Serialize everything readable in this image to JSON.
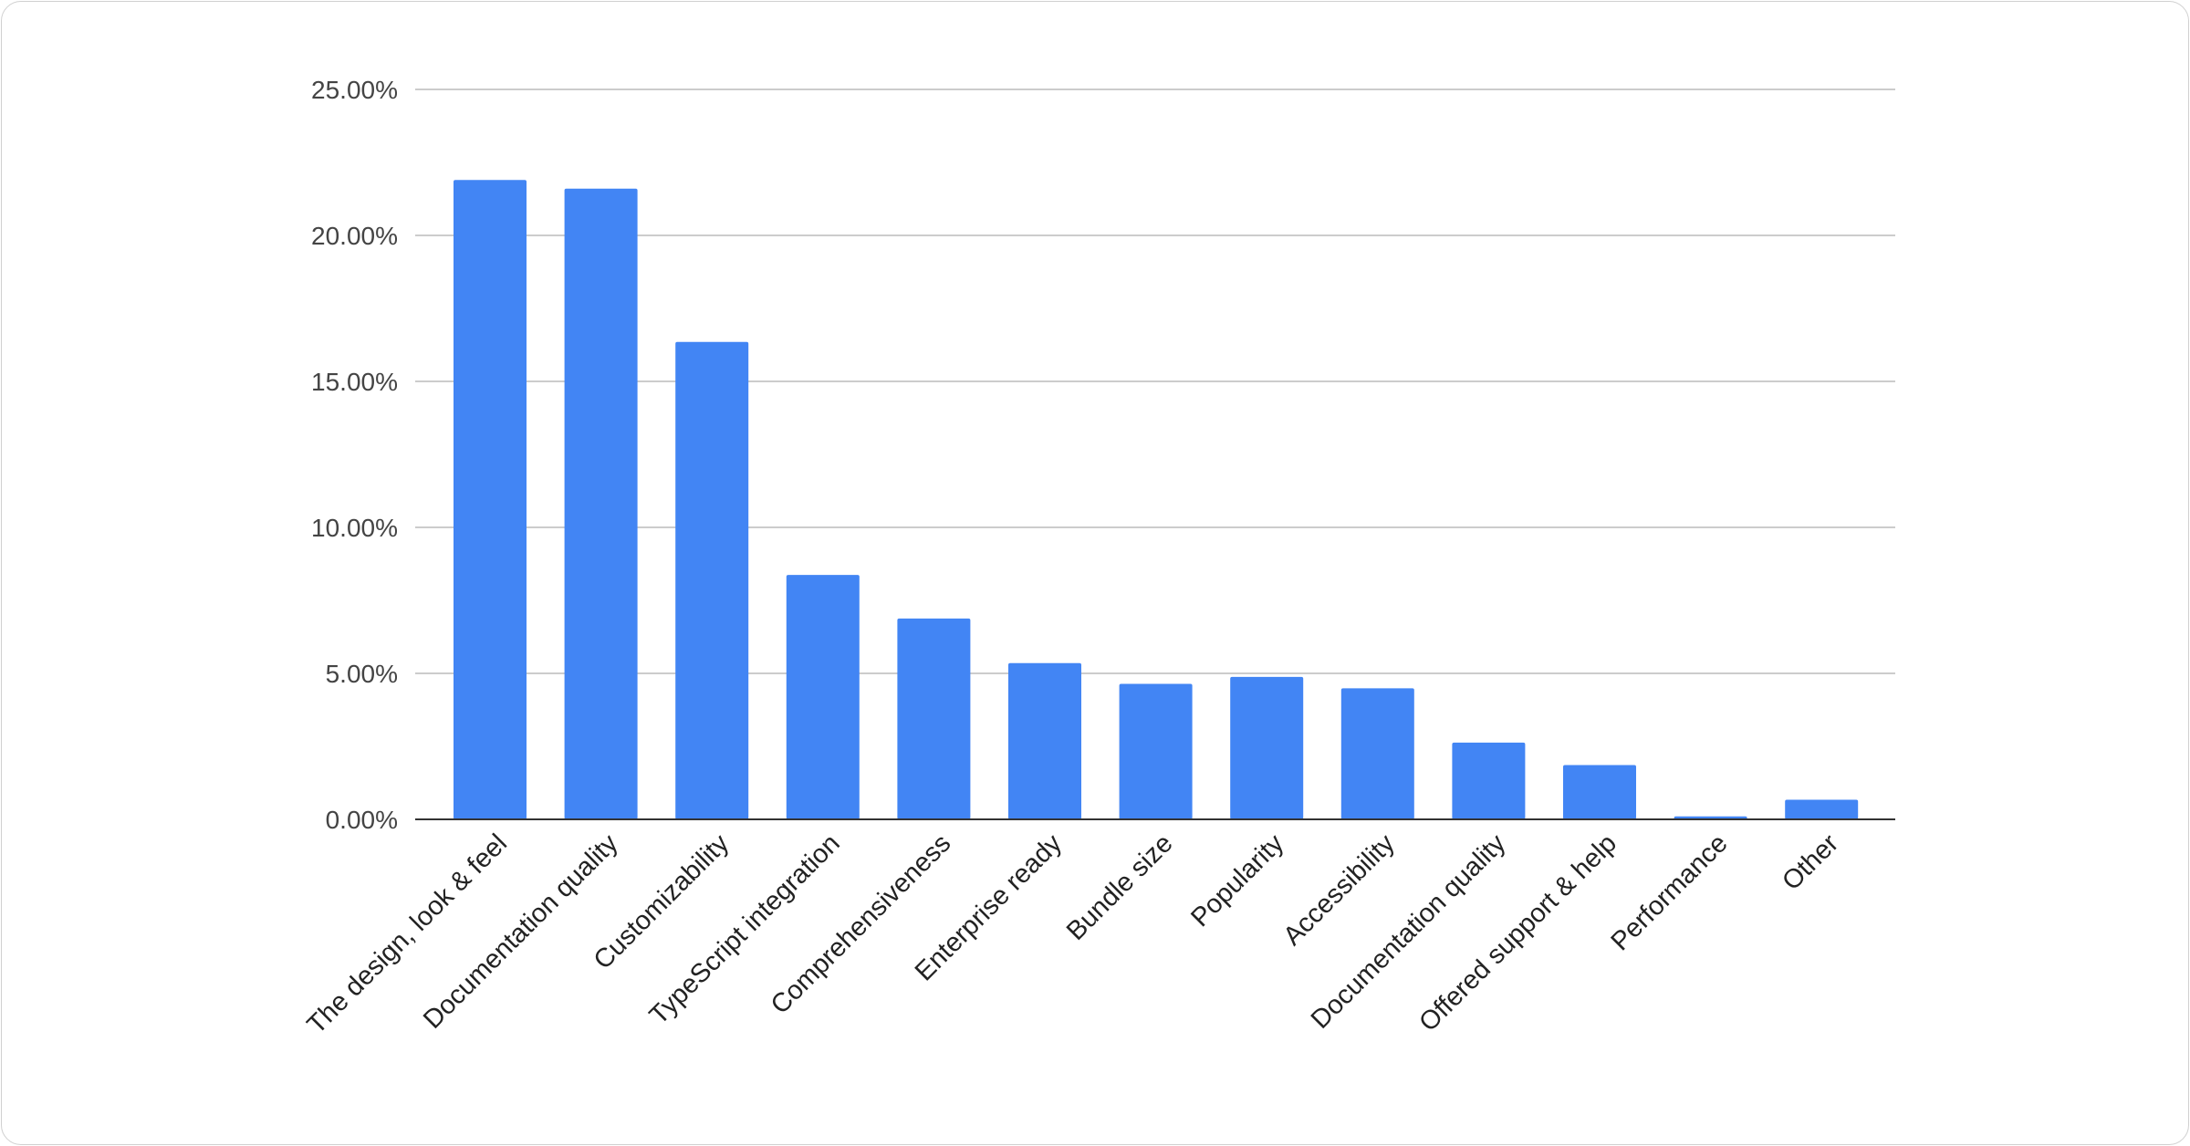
{
  "chart_data": {
    "type": "bar",
    "title": "",
    "xlabel": "",
    "ylabel": "",
    "categories": [
      "The design, look & feel",
      "Documentation quality",
      "Customizability",
      "TypeScript integration",
      "Comprehensiveness",
      "Enterprise ready",
      "Bundle size",
      "Popularity",
      "Accessibility",
      "Documentation quality",
      "Offered support & help",
      "Performance",
      "Other"
    ],
    "values": [
      21.9,
      21.6,
      16.35,
      8.37,
      6.88,
      5.35,
      4.64,
      4.88,
      4.49,
      2.63,
      1.86,
      0.1,
      0.67
    ],
    "ylim": [
      0,
      25
    ],
    "yticks": [
      0,
      5,
      10,
      15,
      20,
      25
    ],
    "ytick_labels": [
      "0.00%",
      "5.00%",
      "10.00%",
      "15.00%",
      "20.00%",
      "25.00%"
    ],
    "grid": true,
    "legend": "none",
    "bar_color": "#4285f4"
  }
}
